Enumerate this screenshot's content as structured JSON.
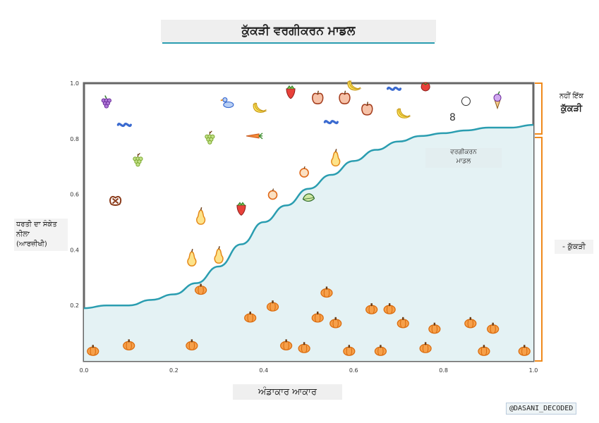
{
  "title": "ਕੁੱਕੜੀ ਵਰਗੀਕਰਨ ਮਾਡਲ",
  "xlabel": "ਅੰਡਾਕਾਰ ਆਕਾਰ",
  "ylabel_lines": [
    "ਧਰਤੀ ਦਾ ਸੰਕੇਤ",
    "ਨੀਲਾ",
    "(ਆਰਜ਼ੀਖੀ)"
  ],
  "legend_right": {
    "top_line1": "ਨਹੀਂ ਇੱਕ",
    "top_line2": "ਕੁੱਕੜੀ",
    "bottom": "- ਕੁੱਕੜੀ"
  },
  "model_label": [
    "ਵਰਗੀਕਰਨ",
    "ਮਾਡਲ"
  ],
  "watermark": "@DASANI_DECODED",
  "stray_digit": "8",
  "colors": {
    "curve": "#2a9db0",
    "fill": "#e4f2f4",
    "pumpkin": "#f08a1c",
    "bracket": "#f08a1c"
  },
  "chart_data": {
    "type": "scatter",
    "xlim": [
      0.0,
      1.0
    ],
    "ylim": [
      0.0,
      1.0
    ],
    "x_ticks": [
      "0.0",
      "0.2",
      "0.4",
      "0.6",
      "0.8",
      "1.0"
    ],
    "y_ticks": [
      "0.2",
      "0.4",
      "0.6",
      "0.8",
      "1.0"
    ],
    "tick_x_values": [
      0.0,
      0.2,
      0.4,
      0.6,
      0.8,
      1.0
    ],
    "tick_y_values": [
      0.2,
      0.4,
      0.6,
      0.8,
      1.0
    ],
    "curve": {
      "x": [
        0.0,
        0.05,
        0.1,
        0.15,
        0.2,
        0.25,
        0.3,
        0.35,
        0.4,
        0.45,
        0.5,
        0.55,
        0.6,
        0.65,
        0.7,
        0.75,
        0.8,
        0.85,
        0.9,
        0.95,
        1.0
      ],
      "y": [
        0.19,
        0.2,
        0.2,
        0.22,
        0.24,
        0.28,
        0.34,
        0.42,
        0.5,
        0.56,
        0.62,
        0.67,
        0.72,
        0.76,
        0.79,
        0.81,
        0.82,
        0.83,
        0.84,
        0.84,
        0.85
      ]
    },
    "series": [
      {
        "name": "ਕੁੱਕੜੀ",
        "x": [
          0.02,
          0.1,
          0.24,
          0.26,
          0.37,
          0.42,
          0.45,
          0.49,
          0.52,
          0.54,
          0.56,
          0.59,
          0.64,
          0.66,
          0.68,
          0.71,
          0.76,
          0.78,
          0.86,
          0.89,
          0.91,
          0.98
        ],
        "y": [
          0.04,
          0.06,
          0.06,
          0.26,
          0.16,
          0.2,
          0.06,
          0.05,
          0.16,
          0.25,
          0.14,
          0.04,
          0.19,
          0.04,
          0.19,
          0.14,
          0.05,
          0.12,
          0.14,
          0.04,
          0.12,
          0.04
        ]
      },
      {
        "name": "ਨਹੀਂ ਇੱਕ ਕੁੱਕੜੀ",
        "x": [
          0.05,
          0.07,
          0.09,
          0.12,
          0.24,
          0.26,
          0.28,
          0.3,
          0.32,
          0.35,
          0.38,
          0.39,
          0.42,
          0.46,
          0.49,
          0.5,
          0.52,
          0.55,
          0.56,
          0.58,
          0.6,
          0.63,
          0.69,
          0.71,
          0.76,
          0.85,
          0.92
        ],
        "y": [
          0.93,
          0.58,
          0.85,
          0.72,
          0.37,
          0.52,
          0.8,
          0.38,
          0.93,
          0.55,
          0.81,
          0.91,
          0.6,
          0.97,
          0.68,
          0.59,
          0.95,
          0.86,
          0.73,
          0.95,
          0.99,
          0.91,
          0.98,
          0.89,
          0.99,
          0.94,
          0.94
        ],
        "kind": [
          "grapes",
          "pretzel",
          "worm",
          "grapes",
          "pear",
          "pear",
          "grapes",
          "pear",
          "duck",
          "strawberry",
          "carrot",
          "banana",
          "orange",
          "strawberry",
          "orange",
          "leaf",
          "apple",
          "worm",
          "pear",
          "apple",
          "banana",
          "apple",
          "worm",
          "banana",
          "tomato",
          "chick",
          "icecream"
        ]
      }
    ]
  }
}
